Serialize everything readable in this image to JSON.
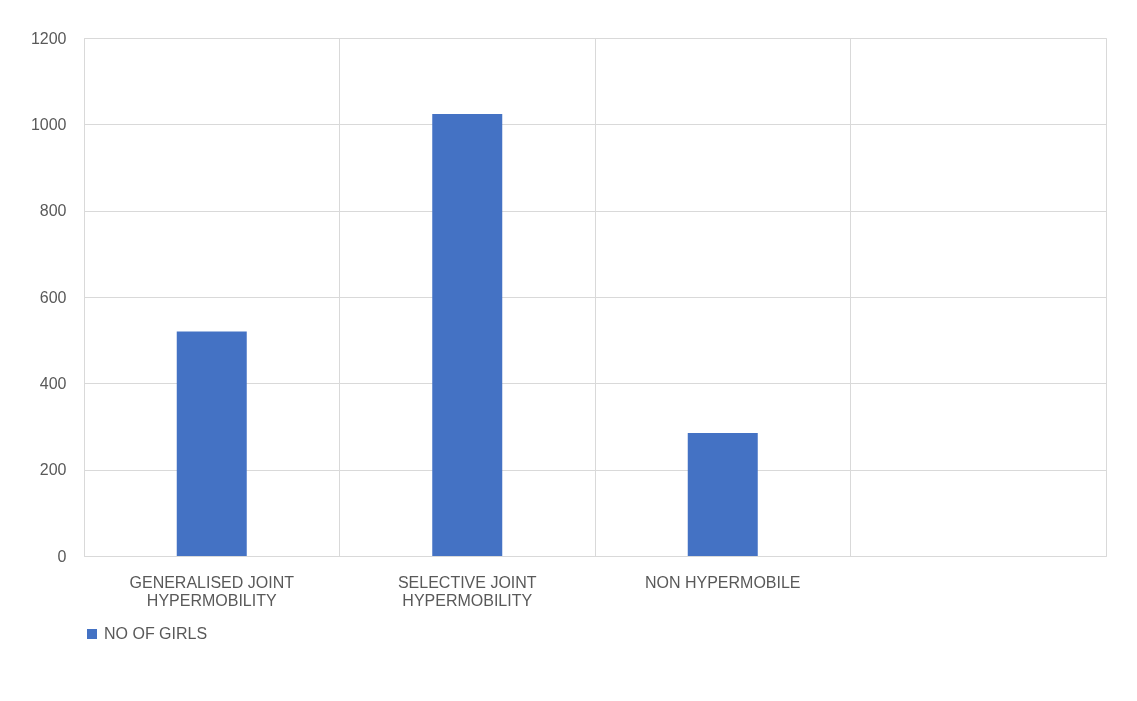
{
  "chart_data": {
    "type": "bar",
    "categories": [
      "GENERALISED JOINT HYPERMOBILITY",
      "SELECTIVE JOINT HYPERMOBILITY",
      "NON HYPERMOBILE",
      null
    ],
    "series": [
      {
        "name": "NO OF GIRLS",
        "color": "#4472c4",
        "values": [
          520,
          1024,
          285,
          null
        ]
      }
    ],
    "ylim": [
      0,
      1200
    ],
    "yticks": [
      0,
      200,
      400,
      600,
      800,
      1000,
      1200
    ],
    "grid": true,
    "legend": "bottom"
  }
}
